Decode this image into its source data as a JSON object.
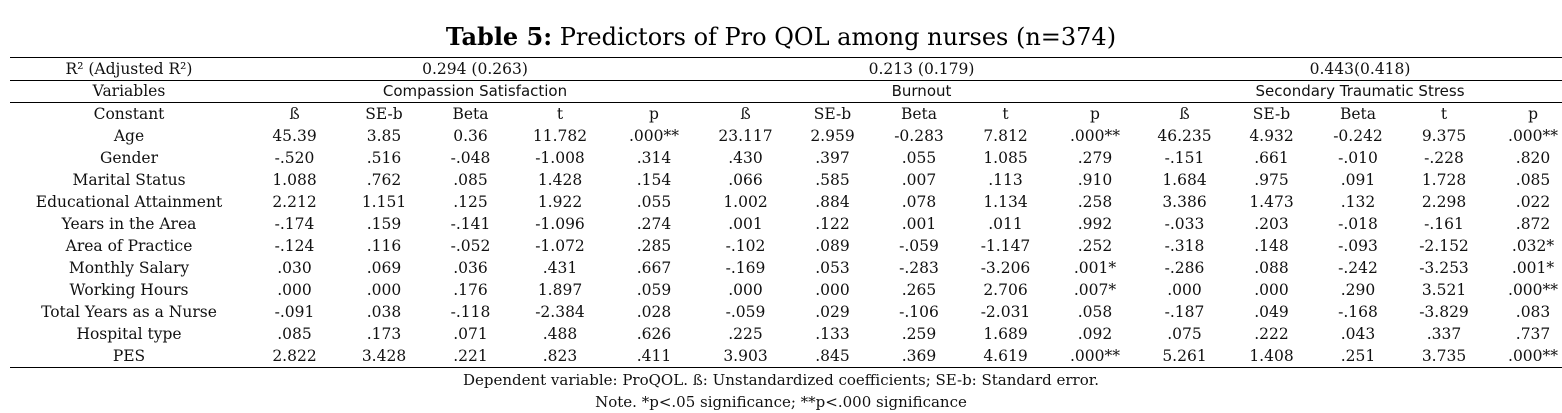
{
  "title": {
    "bold": "Table 5:",
    "rest": " Predictors of Pro QOL among nurses (n=374)"
  },
  "r2_row": {
    "label": "R² (Adjusted R²)",
    "values": [
      "0.294 (0.263)",
      "0.213 (0.179)",
      "0.443(0.418)"
    ]
  },
  "group_row": {
    "label": "Variables",
    "groups": [
      "Compassion Satisfaction",
      "Burnout",
      "Secondary Traumatic Stress"
    ]
  },
  "header_row": {
    "label": "Constant",
    "cols": [
      "ß",
      "SE-b",
      "Beta",
      "t",
      "p",
      "ß",
      "SE-b",
      "Beta",
      "t",
      "p",
      "ß",
      "SE-b",
      "Beta",
      "t",
      "p"
    ]
  },
  "rows": [
    {
      "label": "Age",
      "values": [
        "45.39",
        "3.85",
        "0.36",
        "11.782",
        ".000**",
        "23.117",
        "2.959",
        "-0.283",
        "7.812",
        ".000**",
        "46.235",
        "4.932",
        "-0.242",
        "9.375",
        ".000**"
      ]
    },
    {
      "label": "Gender",
      "values": [
        "-.520",
        ".516",
        "-.048",
        "-1.008",
        ".314",
        ".430",
        ".397",
        ".055",
        "1.085",
        ".279",
        "-.151",
        ".661",
        "-.010",
        "-.228",
        ".820"
      ]
    },
    {
      "label": "Marital Status",
      "values": [
        "1.088",
        ".762",
        ".085",
        "1.428",
        ".154",
        ".066",
        ".585",
        ".007",
        ".113",
        ".910",
        "1.684",
        ".975",
        ".091",
        "1.728",
        ".085"
      ]
    },
    {
      "label": "Educational Attainment",
      "values": [
        "2.212",
        "1.151",
        ".125",
        "1.922",
        ".055",
        "1.002",
        ".884",
        ".078",
        "1.134",
        ".258",
        "3.386",
        "1.473",
        ".132",
        "2.298",
        ".022"
      ]
    },
    {
      "label": "Years in the Area",
      "values": [
        "-.174",
        ".159",
        "-.141",
        "-1.096",
        ".274",
        ".001",
        ".122",
        ".001",
        ".011",
        ".992",
        "-.033",
        ".203",
        "-.018",
        "-.161",
        ".872"
      ]
    },
    {
      "label": "Area of Practice",
      "values": [
        "-.124",
        ".116",
        "-.052",
        "-1.072",
        ".285",
        "-.102",
        ".089",
        "-.059",
        "-1.147",
        ".252",
        "-.318",
        ".148",
        "-.093",
        "-2.152",
        ".032*"
      ]
    },
    {
      "label": "Monthly Salary",
      "values": [
        ".030",
        ".069",
        ".036",
        ".431",
        ".667",
        "-.169",
        ".053",
        "-.283",
        "-3.206",
        ".001*",
        "-.286",
        ".088",
        "-.242",
        "-3.253",
        ".001*"
      ]
    },
    {
      "label": "Working Hours",
      "values": [
        ".000",
        ".000",
        ".176",
        "1.897",
        ".059",
        ".000",
        ".000",
        ".265",
        "2.706",
        ".007*",
        ".000",
        ".000",
        ".290",
        "3.521",
        ".000**"
      ]
    },
    {
      "label": "Total Years as a Nurse",
      "values": [
        "-.091",
        ".038",
        "-.118",
        "-2.384",
        ".028",
        "-.059",
        ".029",
        "-.106",
        "-2.031",
        ".058",
        "-.187",
        ".049",
        "-.168",
        "-3.829",
        ".083"
      ]
    },
    {
      "label": "Hospital type",
      "values": [
        ".085",
        ".173",
        ".071",
        ".488",
        ".626",
        ".225",
        ".133",
        ".259",
        "1.689",
        ".092",
        ".075",
        ".222",
        ".043",
        ".337",
        ".737"
      ]
    },
    {
      "label": "PES",
      "values": [
        "2.822",
        "3.428",
        ".221",
        ".823",
        ".411",
        "3.903",
        ".845",
        ".369",
        "4.619",
        ".000**",
        "5.261",
        "1.408",
        ".251",
        "3.735",
        ".000**"
      ]
    }
  ],
  "footnotes": [
    "Dependent variable: ProQOL. ß: Unstandardized coefficients; SE-b: Standard error.",
    "Note. *p<.05 significance; **p<.000 significance"
  ]
}
